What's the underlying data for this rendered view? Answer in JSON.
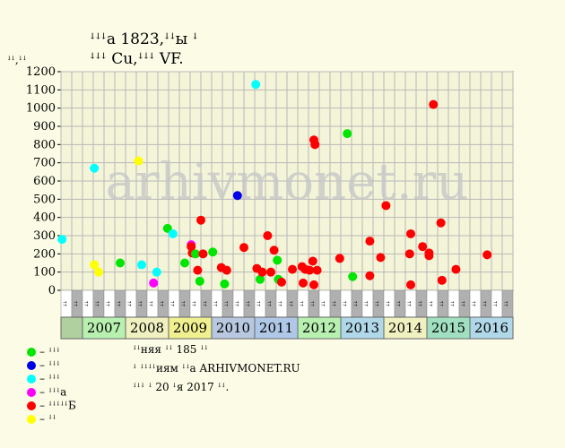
{
  "title_line1": "ꜜꜜꜜа 1823,ꜜꜜы ꜜ",
  "title_line2": "ꜜꜜꜜ Cu,ꜜꜜꜜ VF.",
  "y_unit": "ꜜꜜ,ꜜꜜ",
  "watermark": "arhivmonet.ru",
  "colors": {
    "background": "#fbfbe6",
    "plot_bg": "#f4f5d8",
    "grid": "#b8b8b8",
    "green": "#00e600",
    "blue": "#0000e6",
    "cyan": "#00ffff",
    "magenta": "#ff00ff",
    "red": "#ff0000",
    "yellow": "#ffff00"
  },
  "legend": [
    {
      "color": "#00e600",
      "label": "– ꜜꜜꜜ"
    },
    {
      "color": "#0000e6",
      "label": "– ꜜꜜꜜ"
    },
    {
      "color": "#00ffff",
      "label": "– ꜜꜜꜜ"
    },
    {
      "color": "#ff00ff",
      "label": "– ꜜꜜꜜа"
    },
    {
      "color": "#ff0000",
      "label": "– ꜜꜜꜜꜜꜜБ"
    },
    {
      "color": "#ffff00",
      "label": "– ꜜꜜ"
    }
  ],
  "notes": [
    "ꜜꜜняя ꜜꜜ 185 ꜜꜜ",
    "ꜜ ꜜꜜꜜꜜиям ꜜꜜа ARHIVMONET.RU",
    "ꜜꜜꜜ ꜜ 20 ꜜя 2017 ꜜꜜ."
  ],
  "chart_data": {
    "type": "scatter",
    "ylim": [
      0,
      1200
    ],
    "yticks": [
      0,
      100,
      200,
      300,
      400,
      500,
      600,
      700,
      800,
      900,
      1000,
      1100,
      1200
    ],
    "grid": true,
    "quarter_labels": [
      "ꜜꜜ",
      "ꜜꜜ",
      "ꜜꜜ",
      "ꜜꜜ"
    ],
    "quarter_colors": [
      "#ffffff",
      "#b0b0b0",
      "#ffffff",
      "#b0b0b0"
    ],
    "years": [
      {
        "label": "",
        "color": "#b0d0a0"
      },
      {
        "label": "2007",
        "color": "#b8f0b0"
      },
      {
        "label": "2008",
        "color": "#f0f0c0"
      },
      {
        "label": "2009",
        "color": "#f0f090"
      },
      {
        "label": "2010",
        "color": "#b8c8e0"
      },
      {
        "label": "2011",
        "color": "#b0c8e8"
      },
      {
        "label": "2012",
        "color": "#b8f0b0"
      },
      {
        "label": "2013",
        "color": "#b0d8e8"
      },
      {
        "label": "2014",
        "color": "#f0f0c0"
      },
      {
        "label": "2015",
        "color": "#a0e0c0"
      },
      {
        "label": "2016",
        "color": "#b0d8e8"
      }
    ],
    "points": [
      {
        "x": 0.05,
        "y": 280,
        "c": "cyan"
      },
      {
        "x": 1.55,
        "y": 670,
        "c": "cyan"
      },
      {
        "x": 1.55,
        "y": 140,
        "c": "yellow"
      },
      {
        "x": 1.75,
        "y": 100,
        "c": "yellow"
      },
      {
        "x": 2.75,
        "y": 150,
        "c": "green"
      },
      {
        "x": 3.75,
        "y": 140,
        "c": "cyan"
      },
      {
        "x": 3.6,
        "y": 710,
        "c": "yellow"
      },
      {
        "x": 4.3,
        "y": 40,
        "c": "magenta"
      },
      {
        "x": 4.45,
        "y": 100,
        "c": "cyan"
      },
      {
        "x": 4.95,
        "y": 340,
        "c": "green"
      },
      {
        "x": 5.2,
        "y": 310,
        "c": "cyan"
      },
      {
        "x": 5.75,
        "y": 150,
        "c": "green"
      },
      {
        "x": 6.05,
        "y": 250,
        "c": "magenta"
      },
      {
        "x": 6.05,
        "y": 240,
        "c": "red"
      },
      {
        "x": 6.1,
        "y": 205,
        "c": "red"
      },
      {
        "x": 6.25,
        "y": 200,
        "c": "green"
      },
      {
        "x": 6.35,
        "y": 110,
        "c": "red"
      },
      {
        "x": 6.45,
        "y": 50,
        "c": "green"
      },
      {
        "x": 6.5,
        "y": 385,
        "c": "red"
      },
      {
        "x": 6.6,
        "y": 200,
        "c": "red"
      },
      {
        "x": 7.05,
        "y": 210,
        "c": "green"
      },
      {
        "x": 7.45,
        "y": 125,
        "c": "red"
      },
      {
        "x": 7.6,
        "y": 35,
        "c": "green"
      },
      {
        "x": 7.7,
        "y": 110,
        "c": "red"
      },
      {
        "x": 8.2,
        "y": 520,
        "c": "blue"
      },
      {
        "x": 8.5,
        "y": 235,
        "c": "red"
      },
      {
        "x": 9.05,
        "y": 1130,
        "c": "cyan"
      },
      {
        "x": 9.1,
        "y": 120,
        "c": "red"
      },
      {
        "x": 9.25,
        "y": 60,
        "c": "green"
      },
      {
        "x": 9.35,
        "y": 100,
        "c": "red"
      },
      {
        "x": 9.6,
        "y": 300,
        "c": "red"
      },
      {
        "x": 9.75,
        "y": 100,
        "c": "red"
      },
      {
        "x": 9.9,
        "y": 220,
        "c": "red"
      },
      {
        "x": 10.05,
        "y": 165,
        "c": "green"
      },
      {
        "x": 10.1,
        "y": 60,
        "c": "green"
      },
      {
        "x": 10.25,
        "y": 45,
        "c": "red"
      },
      {
        "x": 10.75,
        "y": 115,
        "c": "red"
      },
      {
        "x": 11.2,
        "y": 130,
        "c": "red"
      },
      {
        "x": 11.25,
        "y": 40,
        "c": "red"
      },
      {
        "x": 11.35,
        "y": 115,
        "c": "red"
      },
      {
        "x": 11.55,
        "y": 110,
        "c": "red"
      },
      {
        "x": 11.75,
        "y": 825,
        "c": "red"
      },
      {
        "x": 11.8,
        "y": 800,
        "c": "red"
      },
      {
        "x": 11.7,
        "y": 160,
        "c": "red"
      },
      {
        "x": 11.75,
        "y": 30,
        "c": "red"
      },
      {
        "x": 11.9,
        "y": 110,
        "c": "red"
      },
      {
        "x": 12.95,
        "y": 175,
        "c": "red"
      },
      {
        "x": 13.3,
        "y": 860,
        "c": "green"
      },
      {
        "x": 13.55,
        "y": 75,
        "c": "green"
      },
      {
        "x": 14.35,
        "y": 270,
        "c": "red"
      },
      {
        "x": 14.35,
        "y": 80,
        "c": "red"
      },
      {
        "x": 14.85,
        "y": 180,
        "c": "red"
      },
      {
        "x": 15.1,
        "y": 465,
        "c": "red"
      },
      {
        "x": 16.2,
        "y": 200,
        "c": "red"
      },
      {
        "x": 16.25,
        "y": 310,
        "c": "red"
      },
      {
        "x": 16.25,
        "y": 30,
        "c": "red"
      },
      {
        "x": 16.8,
        "y": 240,
        "c": "red"
      },
      {
        "x": 17.1,
        "y": 190,
        "c": "red"
      },
      {
        "x": 17.1,
        "y": 205,
        "c": "red"
      },
      {
        "x": 17.3,
        "y": 1020,
        "c": "red"
      },
      {
        "x": 17.65,
        "y": 370,
        "c": "red"
      },
      {
        "x": 17.7,
        "y": 55,
        "c": "red"
      },
      {
        "x": 18.35,
        "y": 115,
        "c": "red"
      },
      {
        "x": 19.8,
        "y": 195,
        "c": "red"
      }
    ]
  }
}
